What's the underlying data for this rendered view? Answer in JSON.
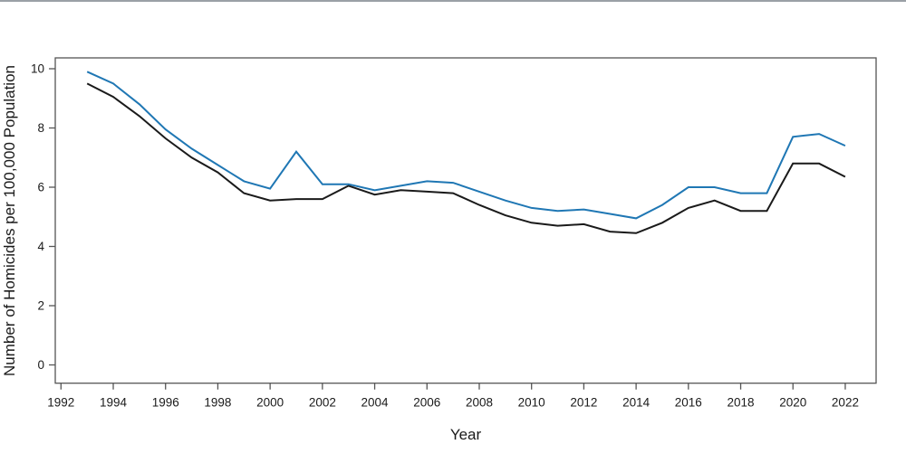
{
  "chart_data": {
    "type": "line",
    "title": "",
    "xlabel": "Year",
    "ylabel": "Number of Homicides per 100,000 Population",
    "x_ticks": [
      1992,
      1994,
      1996,
      1998,
      2000,
      2002,
      2004,
      2006,
      2008,
      2010,
      2012,
      2014,
      2016,
      2018,
      2020,
      2022
    ],
    "y_ticks": [
      0,
      2,
      4,
      6,
      8,
      10
    ],
    "xlim": [
      1992,
      2023
    ],
    "ylim": [
      0,
      10
    ],
    "grid": false,
    "legend": "none",
    "years": [
      1993,
      1994,
      1995,
      1996,
      1997,
      1998,
      1999,
      2000,
      2001,
      2002,
      2003,
      2004,
      2005,
      2006,
      2007,
      2008,
      2009,
      2010,
      2011,
      2012,
      2013,
      2014,
      2015,
      2016,
      2017,
      2018,
      2019,
      2020,
      2021,
      2022
    ],
    "series": [
      {
        "id": "black",
        "color": "#1a1a1a",
        "values": [
          9.5,
          9.05,
          8.4,
          7.65,
          7.0,
          6.5,
          5.8,
          5.55,
          5.6,
          5.6,
          6.05,
          5.75,
          5.9,
          5.85,
          5.8,
          5.4,
          5.05,
          4.8,
          4.7,
          4.75,
          4.5,
          4.45,
          4.8,
          5.3,
          5.55,
          5.2,
          5.2,
          6.8,
          6.8,
          6.35
        ]
      },
      {
        "id": "blue",
        "color": "#1f77b4",
        "values": [
          9.9,
          9.5,
          8.8,
          7.95,
          7.3,
          6.75,
          6.2,
          5.95,
          7.2,
          6.1,
          6.1,
          5.9,
          6.05,
          6.2,
          6.15,
          5.85,
          5.55,
          5.3,
          5.2,
          5.25,
          5.1,
          4.95,
          5.4,
          6.0,
          6.0,
          5.8,
          5.8,
          7.7,
          7.8,
          7.4
        ]
      }
    ]
  }
}
